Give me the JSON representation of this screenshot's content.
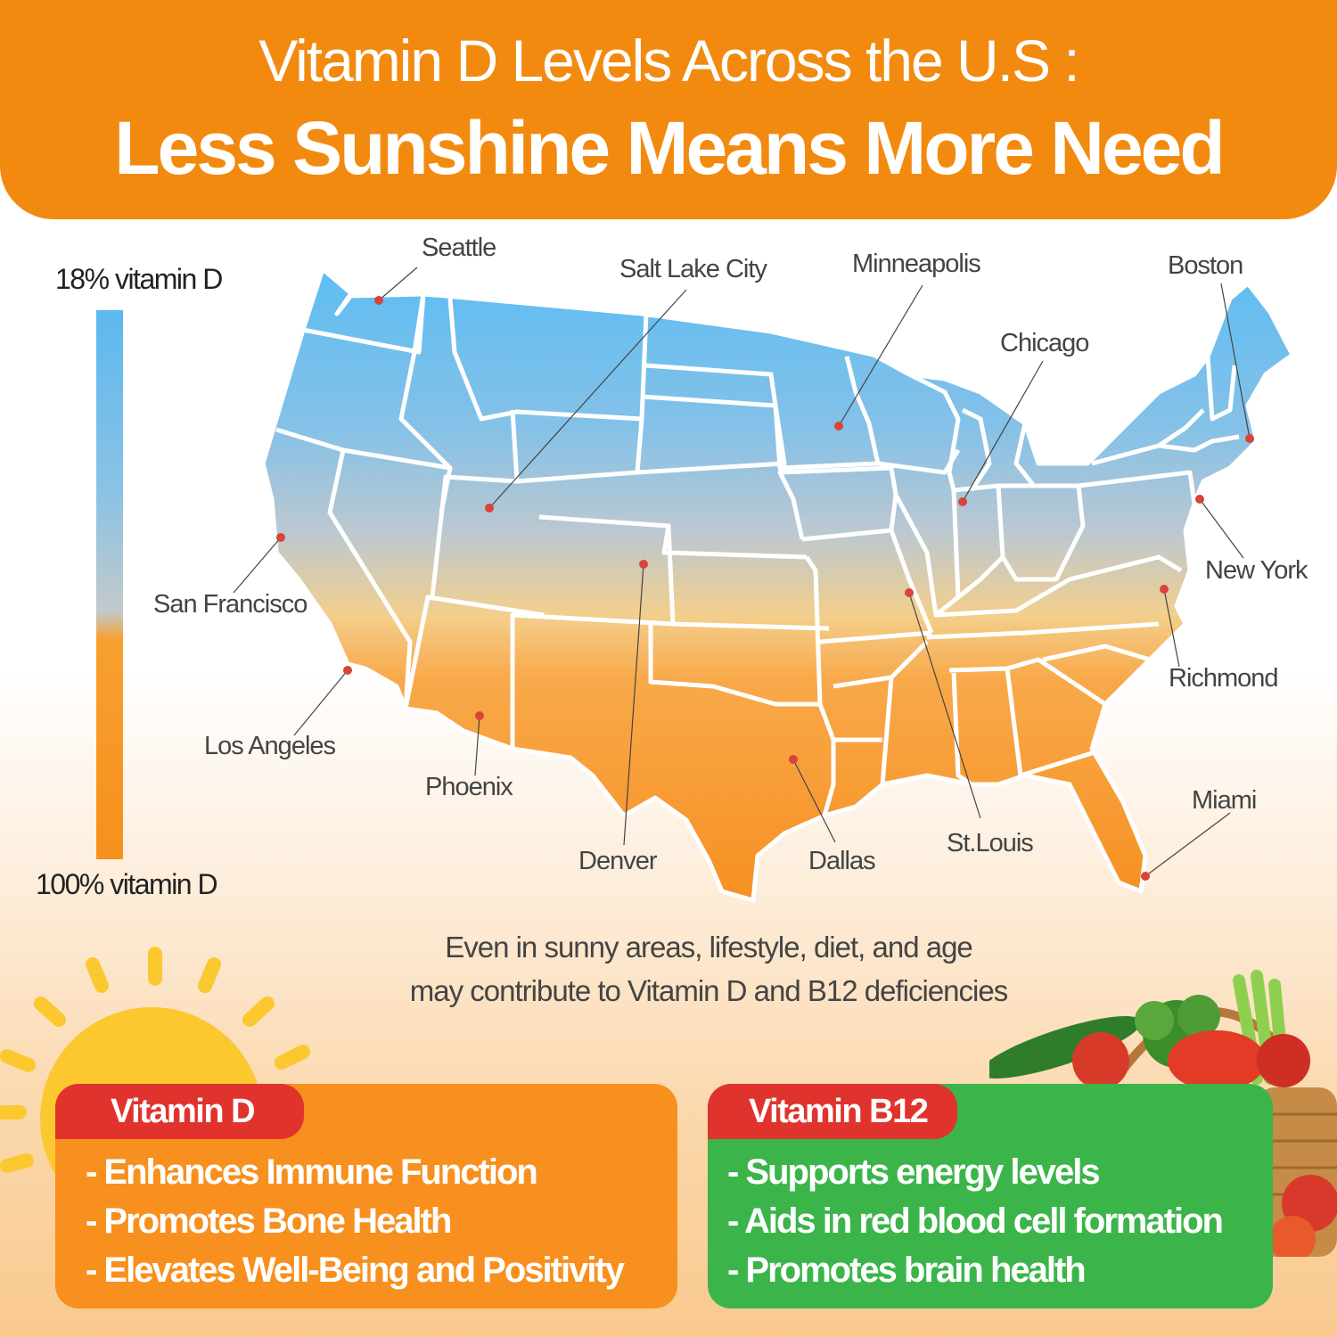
{
  "header": {
    "line1": "Vitamin D Levels Across the U.S :",
    "line2": "Less Sunshine Means More Need"
  },
  "legend": {
    "top_label": "18% vitamin D",
    "bottom_label": "100% vitamin D",
    "top_color": "#5bb8f0",
    "bottom_color": "#f7901c"
  },
  "cities": [
    {
      "name": "Seattle",
      "lon": -122.3,
      "lat": 47.6
    },
    {
      "name": "Salt  Lake City",
      "lon": -111.9,
      "lat": 40.76
    },
    {
      "name": "Minneapolis",
      "lon": -93.27,
      "lat": 44.98
    },
    {
      "name": "Boston",
      "lon": -71.06,
      "lat": 42.36
    },
    {
      "name": "Chicago",
      "lon": -87.63,
      "lat": 41.88
    },
    {
      "name": "San Francisco",
      "lon": -122.42,
      "lat": 37.77
    },
    {
      "name": "New York",
      "lon": -74.0,
      "lat": 40.71
    },
    {
      "name": "Richmond",
      "lon": -77.44,
      "lat": 37.54
    },
    {
      "name": "Los Angeles",
      "lon": -118.24,
      "lat": 34.05
    },
    {
      "name": "Phoenix",
      "lon": -112.07,
      "lat": 33.45
    },
    {
      "name": "Denver",
      "lon": -104.99,
      "lat": 39.74
    },
    {
      "name": "Dallas",
      "lon": -96.8,
      "lat": 32.78
    },
    {
      "name": "St.Louis",
      "lon": -90.2,
      "lat": 38.63
    },
    {
      "name": "Miami",
      "lon": -80.19,
      "lat": 25.76
    }
  ],
  "note": {
    "line1": "Even in sunny areas, lifestyle, diet, and age",
    "line2": "may contribute to Vitamin D and B12 deficiencies"
  },
  "cards": {
    "vitamin_d": {
      "title": "Vitamin D",
      "items": [
        "- Enhances Immune Function",
        "- Promotes Bone Health",
        "- Elevates Well-Being and Positivity"
      ],
      "color": "#f7901e"
    },
    "vitamin_b12": {
      "title": "Vitamin B12",
      "items": [
        "- Supports energy levels",
        "- Aids in red blood cell formation",
        "- Promotes brain health"
      ],
      "color": "#3bb54a"
    },
    "tab_color": "#e1332d"
  },
  "marker_color": "#d9443a",
  "icons": {
    "sun": "sun-icon",
    "basket": "vegetable-basket-icon"
  }
}
